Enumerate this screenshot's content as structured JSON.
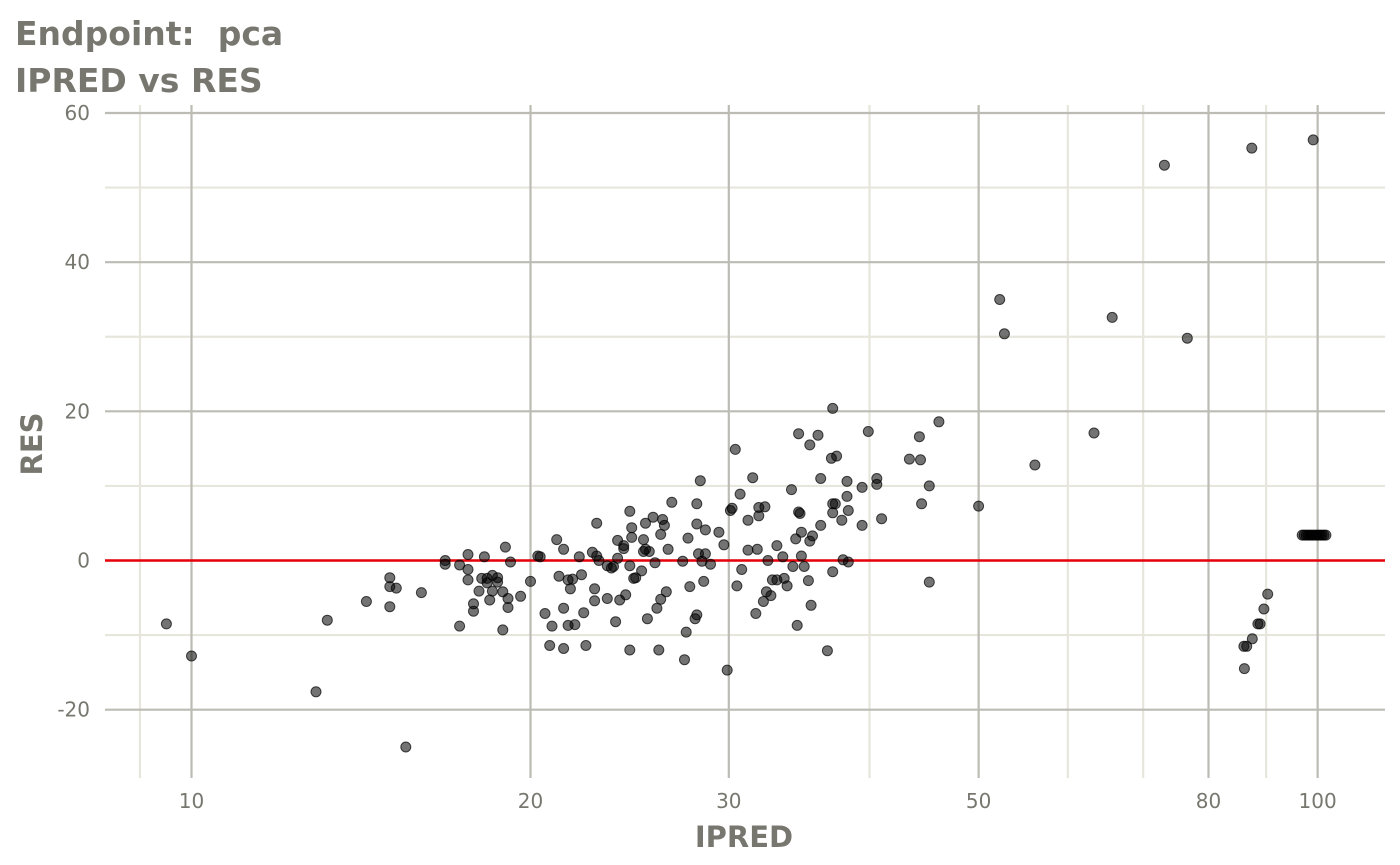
{
  "title_lines": [
    "Endpoint:  pca",
    "IPRED vs RES"
  ],
  "colors": {
    "text": "#77776f",
    "grid_major": "#bcbcb4",
    "grid_minor": "#e6e6dc",
    "reference_line": "#e8000b",
    "point": "#000000"
  },
  "chart_data": {
    "type": "scatter",
    "xlabel": "IPRED",
    "ylabel": "RES",
    "x_scale": "log10",
    "xlim": [
      8,
      120
    ],
    "ylim": [
      -29,
      62
    ],
    "x_ticks": [
      10,
      20,
      30,
      50,
      80,
      100
    ],
    "x_minor_ticks": [
      9,
      40,
      60,
      70,
      90
    ],
    "y_ticks": [
      60,
      40,
      20,
      0,
      -20
    ],
    "y_minor_ticks": [
      50,
      30,
      10,
      -10
    ],
    "reference_line": {
      "axis": "y",
      "value": 0
    },
    "grid": true,
    "legend": "none",
    "points": [
      [
        9.5,
        -8.5
      ],
      [
        10,
        -12.8
      ],
      [
        12.9,
        -17.6
      ],
      [
        13.2,
        -8
      ],
      [
        15.5,
        -25
      ],
      [
        14.3,
        -5.5
      ],
      [
        15,
        -2.3
      ],
      [
        15,
        -3.5
      ],
      [
        15.2,
        -3.7
      ],
      [
        15,
        -6.2
      ],
      [
        16,
        -4.3
      ],
      [
        16.8,
        0
      ],
      [
        16.8,
        -0.5
      ],
      [
        17.3,
        -0.6
      ],
      [
        17.3,
        -8.8
      ],
      [
        17.6,
        0.8
      ],
      [
        17.6,
        -1.2
      ],
      [
        17.6,
        -2.6
      ],
      [
        17.8,
        -5.8
      ],
      [
        17.8,
        -6.8
      ],
      [
        18,
        -4.1
      ],
      [
        18.1,
        -2.4
      ],
      [
        18.2,
        0.5
      ],
      [
        18.3,
        -2.4
      ],
      [
        18.3,
        -3
      ],
      [
        18.4,
        -5.3
      ],
      [
        18.5,
        -2
      ],
      [
        18.5,
        -4.1
      ],
      [
        18.7,
        -2.3
      ],
      [
        18.7,
        -2.9
      ],
      [
        18.9,
        -9.3
      ],
      [
        18.9,
        -4.2
      ],
      [
        19,
        1.8
      ],
      [
        19.1,
        -5.1
      ],
      [
        19.1,
        -6.3
      ],
      [
        19.2,
        -0.2
      ],
      [
        19.6,
        -4.8
      ],
      [
        20,
        -2.8
      ],
      [
        20.3,
        0.6
      ],
      [
        20.4,
        0.5
      ],
      [
        20.6,
        -7.1
      ],
      [
        20.8,
        -11.4
      ],
      [
        20.9,
        -8.8
      ],
      [
        21.1,
        2.8
      ],
      [
        21.2,
        -2.1
      ],
      [
        21.4,
        1.5
      ],
      [
        21.4,
        -6.4
      ],
      [
        21.4,
        -11.8
      ],
      [
        21.6,
        -8.7
      ],
      [
        21.6,
        -2.6
      ],
      [
        21.7,
        -3.8
      ],
      [
        21.8,
        -2.5
      ],
      [
        21.9,
        -8.6
      ],
      [
        22.1,
        0.5
      ],
      [
        22.2,
        -1.9
      ],
      [
        22.3,
        -7
      ],
      [
        22.4,
        -11.4
      ],
      [
        22.7,
        1.1
      ],
      [
        22.8,
        -5.4
      ],
      [
        22.8,
        -3.8
      ],
      [
        22.9,
        5
      ],
      [
        22.9,
        0.6
      ],
      [
        23,
        0
      ],
      [
        23.4,
        -5.1
      ],
      [
        23.4,
        -0.7
      ],
      [
        23.6,
        -1
      ],
      [
        23.7,
        -0.8
      ],
      [
        23.8,
        -8.2
      ],
      [
        23.9,
        0.3
      ],
      [
        23.9,
        2.7
      ],
      [
        24,
        -5.3
      ],
      [
        24.2,
        1.6
      ],
      [
        24.2,
        2
      ],
      [
        24.3,
        -4.6
      ],
      [
        24.5,
        -12
      ],
      [
        24.5,
        6.6
      ],
      [
        24.5,
        -0.7
      ],
      [
        24.6,
        3.1
      ],
      [
        24.6,
        4.4
      ],
      [
        24.7,
        -2.4
      ],
      [
        24.8,
        -2.3
      ],
      [
        25.1,
        -1.4
      ],
      [
        25.2,
        1.2
      ],
      [
        25.2,
        2.8
      ],
      [
        25.3,
        5
      ],
      [
        25.3,
        1.5
      ],
      [
        25.4,
        -7.8
      ],
      [
        25.5,
        1.2
      ],
      [
        25.7,
        5.8
      ],
      [
        25.8,
        -0.3
      ],
      [
        25.9,
        -6.4
      ],
      [
        26,
        -12
      ],
      [
        26.1,
        -5.2
      ],
      [
        26.1,
        3.5
      ],
      [
        26.2,
        5.5
      ],
      [
        26.3,
        4.7
      ],
      [
        26.4,
        -4.2
      ],
      [
        26.5,
        1.5
      ],
      [
        26.7,
        7.8
      ],
      [
        27.3,
        -0.1
      ],
      [
        27.4,
        -13.3
      ],
      [
        27.5,
        -9.6
      ],
      [
        27.6,
        3
      ],
      [
        27.7,
        -3.5
      ],
      [
        28,
        -7.8
      ],
      [
        28.1,
        -7.3
      ],
      [
        28.1,
        4.9
      ],
      [
        28.1,
        7.6
      ],
      [
        28.2,
        0.9
      ],
      [
        28.3,
        10.7
      ],
      [
        28.4,
        -0.1
      ],
      [
        28.5,
        -2.8
      ],
      [
        28.6,
        4.1
      ],
      [
        28.6,
        0.9
      ],
      [
        28.9,
        -0.5
      ],
      [
        29.4,
        3.8
      ],
      [
        29.7,
        2.1
      ],
      [
        29.9,
        -14.7
      ],
      [
        30.1,
        6.7
      ],
      [
        30.2,
        7
      ],
      [
        30.4,
        14.9
      ],
      [
        30.5,
        -3.4
      ],
      [
        30.7,
        8.9
      ],
      [
        30.8,
        -1.2
      ],
      [
        31.2,
        5.4
      ],
      [
        31.2,
        1.4
      ],
      [
        31.5,
        11.1
      ],
      [
        31.7,
        -7.1
      ],
      [
        31.8,
        1.5
      ],
      [
        31.9,
        6
      ],
      [
        31.9,
        7.1
      ],
      [
        32.2,
        -5.5
      ],
      [
        32.3,
        7.2
      ],
      [
        32.4,
        -4.2
      ],
      [
        32.5,
        0
      ],
      [
        32.7,
        -4.7
      ],
      [
        32.8,
        -2.6
      ],
      [
        33.1,
        2
      ],
      [
        33.1,
        -2.6
      ],
      [
        33.5,
        0.5
      ],
      [
        33.6,
        -2.4
      ],
      [
        33.8,
        -3.4
      ],
      [
        34.1,
        9.5
      ],
      [
        34.2,
        -0.8
      ],
      [
        34.4,
        2.9
      ],
      [
        34.5,
        -8.7
      ],
      [
        34.6,
        17
      ],
      [
        34.6,
        6.5
      ],
      [
        34.7,
        6.3
      ],
      [
        34.8,
        3.8
      ],
      [
        34.8,
        0.6
      ],
      [
        35,
        -0.8
      ],
      [
        35.3,
        -2.7
      ],
      [
        35.4,
        2.6
      ],
      [
        35.4,
        15.5
      ],
      [
        35.5,
        -6
      ],
      [
        35.6,
        3.3
      ],
      [
        36,
        16.8
      ],
      [
        36.2,
        4.7
      ],
      [
        36.2,
        11
      ],
      [
        36.7,
        -12.1
      ],
      [
        37,
        13.7
      ],
      [
        37.1,
        6.4
      ],
      [
        37.1,
        20.4
      ],
      [
        37.1,
        7.6
      ],
      [
        37.1,
        -1.5
      ],
      [
        37.3,
        7.6
      ],
      [
        37.4,
        14
      ],
      [
        37.8,
        5.4
      ],
      [
        37.9,
        0.1
      ],
      [
        38.2,
        8.6
      ],
      [
        38.2,
        10.6
      ],
      [
        38.3,
        -0.2
      ],
      [
        38.3,
        6.7
      ],
      [
        39.4,
        9.8
      ],
      [
        39.4,
        4.7
      ],
      [
        39.9,
        17.3
      ],
      [
        40.6,
        11
      ],
      [
        40.6,
        10.2
      ],
      [
        41,
        5.6
      ],
      [
        43.4,
        13.6
      ],
      [
        44.3,
        16.6
      ],
      [
        44.4,
        13.5
      ],
      [
        44.5,
        7.6
      ],
      [
        45.2,
        10
      ],
      [
        45.2,
        -2.9
      ],
      [
        46.1,
        18.6
      ],
      [
        50,
        7.3
      ],
      [
        52.2,
        35
      ],
      [
        52.7,
        30.4
      ],
      [
        56.1,
        12.8
      ],
      [
        63.3,
        17.1
      ],
      [
        65.7,
        32.6
      ],
      [
        73.1,
        53
      ],
      [
        76.6,
        29.8
      ],
      [
        86,
        -11.5
      ],
      [
        86.1,
        -14.5
      ],
      [
        86.5,
        -11.5
      ],
      [
        87.4,
        55.3
      ],
      [
        87.5,
        -10.5
      ],
      [
        88.5,
        -8.5
      ],
      [
        88.9,
        -8.5
      ],
      [
        89.6,
        -6.5
      ],
      [
        90.3,
        -4.5
      ],
      [
        96.9,
        3.4
      ],
      [
        97.3,
        3.4
      ],
      [
        97.7,
        3.4
      ],
      [
        98.1,
        3.4
      ],
      [
        98.5,
        3.4
      ],
      [
        98.9,
        3.4
      ],
      [
        99.3,
        3.4
      ],
      [
        99.7,
        3.4
      ],
      [
        100.1,
        3.4
      ],
      [
        100.5,
        3.4
      ],
      [
        100.9,
        3.4
      ],
      [
        101.3,
        3.4
      ],
      [
        101.7,
        3.4
      ],
      [
        99.1,
        56.4
      ]
    ]
  }
}
